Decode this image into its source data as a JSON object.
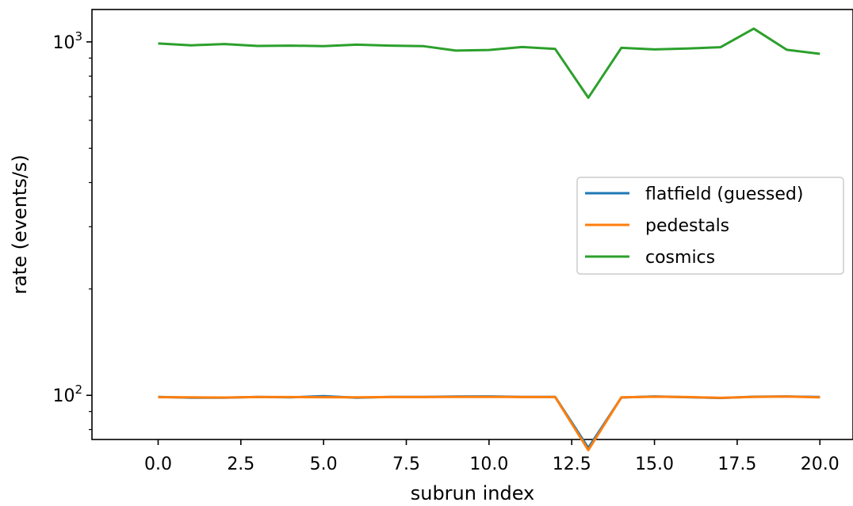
{
  "chart_data": {
    "type": "line",
    "xlabel": "subrun index",
    "ylabel": "rate (events/s)",
    "xlim": [
      -2.0,
      21.0
    ],
    "ylim": [
      75,
      1235
    ],
    "yscale": "log",
    "grid": false,
    "legend_position": "center-right",
    "x_ticks": [
      0.0,
      2.5,
      5.0,
      7.5,
      10.0,
      12.5,
      15.0,
      17.5,
      20.0
    ],
    "x_tick_labels": [
      "0.0",
      "2.5",
      "5.0",
      "7.5",
      "10.0",
      "12.5",
      "15.0",
      "17.5",
      "20.0"
    ],
    "y_major_ticks": [
      {
        "value": 100,
        "base": "10",
        "exp": "2"
      },
      {
        "value": 1000,
        "base": "10",
        "exp": "3"
      }
    ],
    "y_minor_ticks": [
      80,
      90,
      200,
      300,
      400,
      500,
      600,
      700,
      800,
      900
    ],
    "x": [
      0,
      1,
      2,
      3,
      4,
      5,
      6,
      7,
      8,
      9,
      10,
      11,
      12,
      13,
      14,
      15,
      16,
      17,
      18,
      19,
      20
    ],
    "series": [
      {
        "name": "flatfield (guessed)",
        "color": "#1f77b4",
        "values": [
          99,
          98.5,
          98.5,
          99,
          98.7,
          99.5,
          98.5,
          99,
          99,
          99.2,
          99.3,
          99,
          99,
          71,
          98.6,
          99.3,
          98.8,
          98.3,
          99.1,
          99.3,
          98.9
        ]
      },
      {
        "name": "pedestals",
        "color": "#ff7f0e",
        "values": [
          98.8,
          98.7,
          98.6,
          98.9,
          98.9,
          98.8,
          98.7,
          98.9,
          98.9,
          99.0,
          99.0,
          98.9,
          98.9,
          70,
          98.7,
          99.1,
          98.9,
          98.4,
          99.0,
          99.2,
          98.7
        ]
      },
      {
        "name": "cosmics",
        "color": "#2ca02c",
        "values": [
          990,
          978,
          986,
          974,
          976,
          973,
          982,
          976,
          973,
          945,
          949,
          967,
          955,
          695,
          962,
          952,
          958,
          966,
          1090,
          950,
          925
        ]
      }
    ]
  }
}
